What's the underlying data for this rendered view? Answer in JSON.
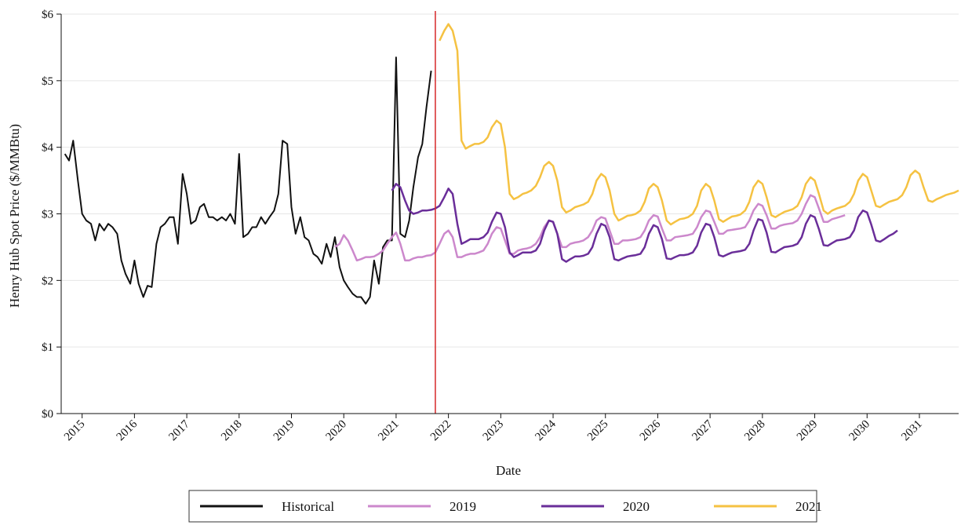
{
  "chart_data": {
    "type": "line",
    "xlabel": "Date",
    "ylabel": "Henry Hub Spot Price ($/MMBtu)",
    "ylim": [
      0,
      6
    ],
    "xlim": [
      2014.6,
      2031.75
    ],
    "grid": "horizontal",
    "legend_position": "bottom",
    "y_ticks": [
      "$0",
      "$1",
      "$2",
      "$3",
      "$4",
      "$5",
      "$6"
    ],
    "x_ticks": [
      "2015",
      "2016",
      "2017",
      "2018",
      "2019",
      "2020",
      "2021",
      "2022",
      "2023",
      "2024",
      "2025",
      "2026",
      "2027",
      "2028",
      "2029",
      "2030",
      "2031"
    ],
    "vertical_marker": {
      "x": 2021.75,
      "color": "#d62728"
    },
    "series": [
      {
        "name": "Historical",
        "color": "#111111",
        "x": [
          2014.67,
          2014.75,
          2014.83,
          2014.92,
          2015.0,
          2015.08,
          2015.17,
          2015.25,
          2015.33,
          2015.42,
          2015.5,
          2015.58,
          2015.67,
          2015.75,
          2015.83,
          2015.92,
          2016.0,
          2016.08,
          2016.17,
          2016.25,
          2016.33,
          2016.42,
          2016.5,
          2016.58,
          2016.67,
          2016.75,
          2016.83,
          2016.92,
          2017.0,
          2017.08,
          2017.17,
          2017.25,
          2017.33,
          2017.42,
          2017.5,
          2017.58,
          2017.67,
          2017.75,
          2017.83,
          2017.92,
          2018.0,
          2018.08,
          2018.17,
          2018.25,
          2018.33,
          2018.42,
          2018.5,
          2018.58,
          2018.67,
          2018.75,
          2018.83,
          2018.92,
          2019.0,
          2019.08,
          2019.17,
          2019.25,
          2019.33,
          2019.42,
          2019.5,
          2019.58,
          2019.67,
          2019.75,
          2019.83,
          2019.92,
          2020.0,
          2020.08,
          2020.17,
          2020.25,
          2020.33,
          2020.42,
          2020.5,
          2020.58,
          2020.67,
          2020.75,
          2020.83,
          2020.92,
          2021.0,
          2021.08,
          2021.17,
          2021.25,
          2021.33,
          2021.42,
          2021.5,
          2021.58,
          2021.67
        ],
        "y": [
          3.9,
          3.8,
          4.1,
          3.5,
          3.0,
          2.9,
          2.85,
          2.6,
          2.85,
          2.75,
          2.85,
          2.8,
          2.7,
          2.3,
          2.1,
          1.95,
          2.3,
          1.95,
          1.75,
          1.92,
          1.9,
          2.55,
          2.8,
          2.85,
          2.95,
          2.95,
          2.55,
          3.6,
          3.3,
          2.85,
          2.9,
          3.1,
          3.15,
          2.95,
          2.95,
          2.9,
          2.95,
          2.9,
          3.0,
          2.85,
          3.9,
          2.65,
          2.7,
          2.8,
          2.8,
          2.95,
          2.85,
          2.95,
          3.05,
          3.3,
          4.1,
          4.05,
          3.1,
          2.7,
          2.95,
          2.65,
          2.6,
          2.4,
          2.35,
          2.25,
          2.55,
          2.35,
          2.65,
          2.2,
          2.0,
          1.9,
          1.8,
          1.75,
          1.75,
          1.65,
          1.75,
          2.3,
          1.95,
          2.5,
          2.6,
          2.6,
          5.35,
          2.7,
          2.65,
          2.9,
          3.4,
          3.85,
          4.05,
          4.6,
          5.15
        ]
      },
      {
        "name": "2019",
        "color": "#cc88cc",
        "x": [
          2019.83,
          2019.92,
          2020.0,
          2020.08,
          2020.17,
          2020.25,
          2020.33,
          2020.42,
          2020.5,
          2020.58,
          2020.67,
          2020.75,
          2020.83,
          2020.92,
          2021.0,
          2021.08,
          2021.17,
          2021.25,
          2021.33,
          2021.42,
          2021.5,
          2021.58,
          2021.67,
          2021.75,
          2021.83,
          2021.92,
          2022.0,
          2022.08,
          2022.17,
          2022.25,
          2022.33,
          2022.42,
          2022.5,
          2022.58,
          2022.67,
          2022.75,
          2022.83,
          2022.92,
          2023.0,
          2023.08,
          2023.17,
          2023.25,
          2023.33,
          2023.42,
          2023.5,
          2023.58,
          2023.67,
          2023.75,
          2023.83,
          2023.92,
          2024.0,
          2024.08,
          2024.17,
          2024.25,
          2024.33,
          2024.42,
          2024.5,
          2024.58,
          2024.67,
          2024.75,
          2024.83,
          2024.92,
          2025.0,
          2025.08,
          2025.17,
          2025.25,
          2025.33,
          2025.42,
          2025.5,
          2025.58,
          2025.67,
          2025.75,
          2025.83,
          2025.92,
          2026.0,
          2026.08,
          2026.17,
          2026.25,
          2026.33,
          2026.42,
          2026.5,
          2026.58,
          2026.67,
          2026.75,
          2026.83,
          2026.92,
          2027.0,
          2027.08,
          2027.17,
          2027.25,
          2027.33,
          2027.42,
          2027.5,
          2027.58,
          2027.67,
          2027.75,
          2027.83,
          2027.92,
          2028.0,
          2028.08,
          2028.17,
          2028.25,
          2028.33,
          2028.42,
          2028.5,
          2028.58,
          2028.67,
          2028.75,
          2028.83,
          2028.92,
          2029.0,
          2029.08,
          2029.17,
          2029.25,
          2029.33,
          2029.42,
          2029.5,
          2029.58
        ],
        "y": [
          2.5,
          2.55,
          2.68,
          2.6,
          2.45,
          2.3,
          2.32,
          2.35,
          2.35,
          2.36,
          2.4,
          2.45,
          2.55,
          2.65,
          2.72,
          2.55,
          2.3,
          2.3,
          2.33,
          2.35,
          2.35,
          2.37,
          2.38,
          2.42,
          2.55,
          2.7,
          2.75,
          2.65,
          2.35,
          2.35,
          2.38,
          2.4,
          2.4,
          2.42,
          2.45,
          2.55,
          2.7,
          2.8,
          2.78,
          2.6,
          2.4,
          2.4,
          2.45,
          2.47,
          2.48,
          2.5,
          2.55,
          2.65,
          2.8,
          2.9,
          2.88,
          2.7,
          2.5,
          2.5,
          2.55,
          2.57,
          2.58,
          2.6,
          2.65,
          2.75,
          2.9,
          2.95,
          2.93,
          2.75,
          2.55,
          2.55,
          2.6,
          2.6,
          2.61,
          2.62,
          2.65,
          2.75,
          2.9,
          2.98,
          2.96,
          2.78,
          2.6,
          2.6,
          2.65,
          2.66,
          2.67,
          2.68,
          2.7,
          2.8,
          2.95,
          3.05,
          3.03,
          2.88,
          2.7,
          2.7,
          2.75,
          2.76,
          2.77,
          2.78,
          2.8,
          2.9,
          3.05,
          3.15,
          3.12,
          2.98,
          2.78,
          2.78,
          2.82,
          2.84,
          2.85,
          2.86,
          2.9,
          3.0,
          3.15,
          3.28,
          3.25,
          3.08,
          2.88,
          2.88,
          2.92,
          2.94,
          2.96,
          2.98
        ]
      },
      {
        "name": "2020",
        "color": "#6a2e99",
        "x": [
          2020.92,
          2021.0,
          2021.08,
          2021.17,
          2021.25,
          2021.33,
          2021.42,
          2021.5,
          2021.58,
          2021.67,
          2021.75,
          2021.83,
          2021.92,
          2022.0,
          2022.08,
          2022.17,
          2022.25,
          2022.33,
          2022.42,
          2022.5,
          2022.58,
          2022.67,
          2022.75,
          2022.83,
          2022.92,
          2023.0,
          2023.08,
          2023.17,
          2023.25,
          2023.33,
          2023.42,
          2023.5,
          2023.58,
          2023.67,
          2023.75,
          2023.83,
          2023.92,
          2024.0,
          2024.08,
          2024.17,
          2024.25,
          2024.33,
          2024.42,
          2024.5,
          2024.58,
          2024.67,
          2024.75,
          2024.83,
          2024.92,
          2025.0,
          2025.08,
          2025.17,
          2025.25,
          2025.33,
          2025.42,
          2025.5,
          2025.58,
          2025.67,
          2025.75,
          2025.83,
          2025.92,
          2026.0,
          2026.08,
          2026.17,
          2026.25,
          2026.33,
          2026.42,
          2026.5,
          2026.58,
          2026.67,
          2026.75,
          2026.83,
          2026.92,
          2027.0,
          2027.08,
          2027.17,
          2027.25,
          2027.33,
          2027.42,
          2027.5,
          2027.58,
          2027.67,
          2027.75,
          2027.83,
          2027.92,
          2028.0,
          2028.08,
          2028.17,
          2028.25,
          2028.33,
          2028.42,
          2028.5,
          2028.58,
          2028.67,
          2028.75,
          2028.83,
          2028.92,
          2029.0,
          2029.08,
          2029.17,
          2029.25,
          2029.33,
          2029.42,
          2029.5,
          2029.58,
          2029.67,
          2029.75,
          2029.83,
          2029.92,
          2030.0,
          2030.08,
          2030.17,
          2030.25,
          2030.33,
          2030.42,
          2030.5,
          2030.58
        ],
        "y": [
          3.35,
          3.45,
          3.4,
          3.2,
          3.05,
          3.0,
          3.02,
          3.05,
          3.05,
          3.06,
          3.08,
          3.12,
          3.25,
          3.38,
          3.3,
          2.85,
          2.55,
          2.58,
          2.62,
          2.62,
          2.62,
          2.65,
          2.72,
          2.88,
          3.02,
          3.0,
          2.8,
          2.42,
          2.35,
          2.38,
          2.42,
          2.42,
          2.42,
          2.45,
          2.55,
          2.75,
          2.9,
          2.88,
          2.7,
          2.32,
          2.28,
          2.32,
          2.36,
          2.36,
          2.37,
          2.4,
          2.5,
          2.7,
          2.85,
          2.82,
          2.65,
          2.32,
          2.3,
          2.33,
          2.36,
          2.37,
          2.38,
          2.4,
          2.5,
          2.7,
          2.83,
          2.8,
          2.62,
          2.33,
          2.32,
          2.35,
          2.38,
          2.38,
          2.39,
          2.42,
          2.52,
          2.72,
          2.85,
          2.83,
          2.65,
          2.38,
          2.36,
          2.39,
          2.42,
          2.43,
          2.44,
          2.46,
          2.55,
          2.75,
          2.92,
          2.9,
          2.72,
          2.43,
          2.42,
          2.46,
          2.5,
          2.51,
          2.52,
          2.55,
          2.65,
          2.85,
          2.98,
          2.95,
          2.77,
          2.53,
          2.52,
          2.56,
          2.6,
          2.61,
          2.62,
          2.65,
          2.75,
          2.95,
          3.05,
          3.02,
          2.84,
          2.6,
          2.58,
          2.62,
          2.67,
          2.7,
          2.75
        ]
      },
      {
        "name": "2021",
        "color": "#f5c242",
        "x": [
          2021.83,
          2021.92,
          2022.0,
          2022.08,
          2022.17,
          2022.25,
          2022.33,
          2022.42,
          2022.5,
          2022.58,
          2022.67,
          2022.75,
          2022.83,
          2022.92,
          2023.0,
          2023.08,
          2023.17,
          2023.25,
          2023.33,
          2023.42,
          2023.5,
          2023.58,
          2023.67,
          2023.75,
          2023.83,
          2023.92,
          2024.0,
          2024.08,
          2024.17,
          2024.25,
          2024.33,
          2024.42,
          2024.5,
          2024.58,
          2024.67,
          2024.75,
          2024.83,
          2024.92,
          2025.0,
          2025.08,
          2025.17,
          2025.25,
          2025.33,
          2025.42,
          2025.5,
          2025.58,
          2025.67,
          2025.75,
          2025.83,
          2025.92,
          2026.0,
          2026.08,
          2026.17,
          2026.25,
          2026.33,
          2026.42,
          2026.5,
          2026.58,
          2026.67,
          2026.75,
          2026.83,
          2026.92,
          2027.0,
          2027.08,
          2027.17,
          2027.25,
          2027.33,
          2027.42,
          2027.5,
          2027.58,
          2027.67,
          2027.75,
          2027.83,
          2027.92,
          2028.0,
          2028.08,
          2028.17,
          2028.25,
          2028.33,
          2028.42,
          2028.5,
          2028.58,
          2028.67,
          2028.75,
          2028.83,
          2028.92,
          2029.0,
          2029.08,
          2029.17,
          2029.25,
          2029.33,
          2029.42,
          2029.5,
          2029.58,
          2029.67,
          2029.75,
          2029.83,
          2029.92,
          2030.0,
          2030.08,
          2030.17,
          2030.25,
          2030.33,
          2030.42,
          2030.5,
          2030.58,
          2030.67,
          2030.75,
          2030.83,
          2030.92,
          2031.0,
          2031.08,
          2031.17,
          2031.25,
          2031.33,
          2031.42,
          2031.5,
          2031.58,
          2031.67,
          2031.75
        ],
        "y": [
          5.6,
          5.75,
          5.85,
          5.75,
          5.45,
          4.1,
          3.98,
          4.02,
          4.05,
          4.05,
          4.08,
          4.15,
          4.3,
          4.4,
          4.35,
          4.0,
          3.3,
          3.22,
          3.25,
          3.3,
          3.32,
          3.35,
          3.42,
          3.55,
          3.72,
          3.78,
          3.72,
          3.5,
          3.1,
          3.02,
          3.05,
          3.1,
          3.12,
          3.14,
          3.18,
          3.3,
          3.5,
          3.6,
          3.55,
          3.35,
          3.0,
          2.9,
          2.93,
          2.97,
          2.98,
          3.0,
          3.05,
          3.18,
          3.38,
          3.45,
          3.4,
          3.2,
          2.9,
          2.84,
          2.88,
          2.92,
          2.93,
          2.95,
          3.0,
          3.12,
          3.35,
          3.45,
          3.4,
          3.2,
          2.92,
          2.88,
          2.92,
          2.96,
          2.97,
          2.99,
          3.05,
          3.18,
          3.4,
          3.5,
          3.45,
          3.25,
          2.98,
          2.95,
          2.99,
          3.03,
          3.05,
          3.07,
          3.12,
          3.25,
          3.45,
          3.55,
          3.5,
          3.3,
          3.05,
          3.0,
          3.05,
          3.08,
          3.1,
          3.12,
          3.18,
          3.3,
          3.5,
          3.6,
          3.55,
          3.35,
          3.12,
          3.1,
          3.14,
          3.18,
          3.2,
          3.22,
          3.28,
          3.4,
          3.58,
          3.65,
          3.6,
          3.4,
          3.2,
          3.18,
          3.22,
          3.25,
          3.28,
          3.3,
          3.32,
          3.35
        ]
      }
    ]
  }
}
